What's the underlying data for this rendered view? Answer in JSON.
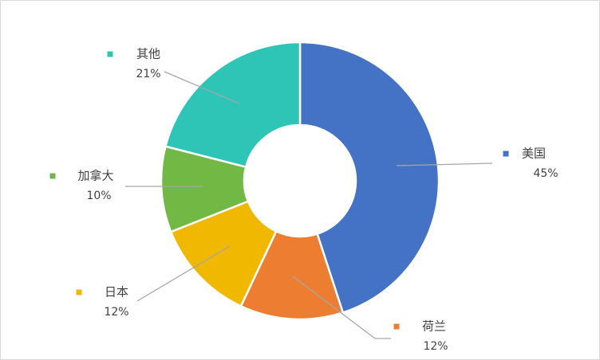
{
  "chart_data": {
    "type": "donut",
    "categories": [
      "美国",
      "荷兰",
      "日本",
      "加拿大",
      "其他"
    ],
    "values": [
      45,
      12,
      12,
      10,
      21
    ],
    "value_labels": [
      "45%",
      "12%",
      "12%",
      "10%",
      "21%"
    ],
    "colors": [
      "#4472c4",
      "#ed7d31",
      "#f0b800",
      "#72b844",
      "#2ec4b6"
    ]
  }
}
